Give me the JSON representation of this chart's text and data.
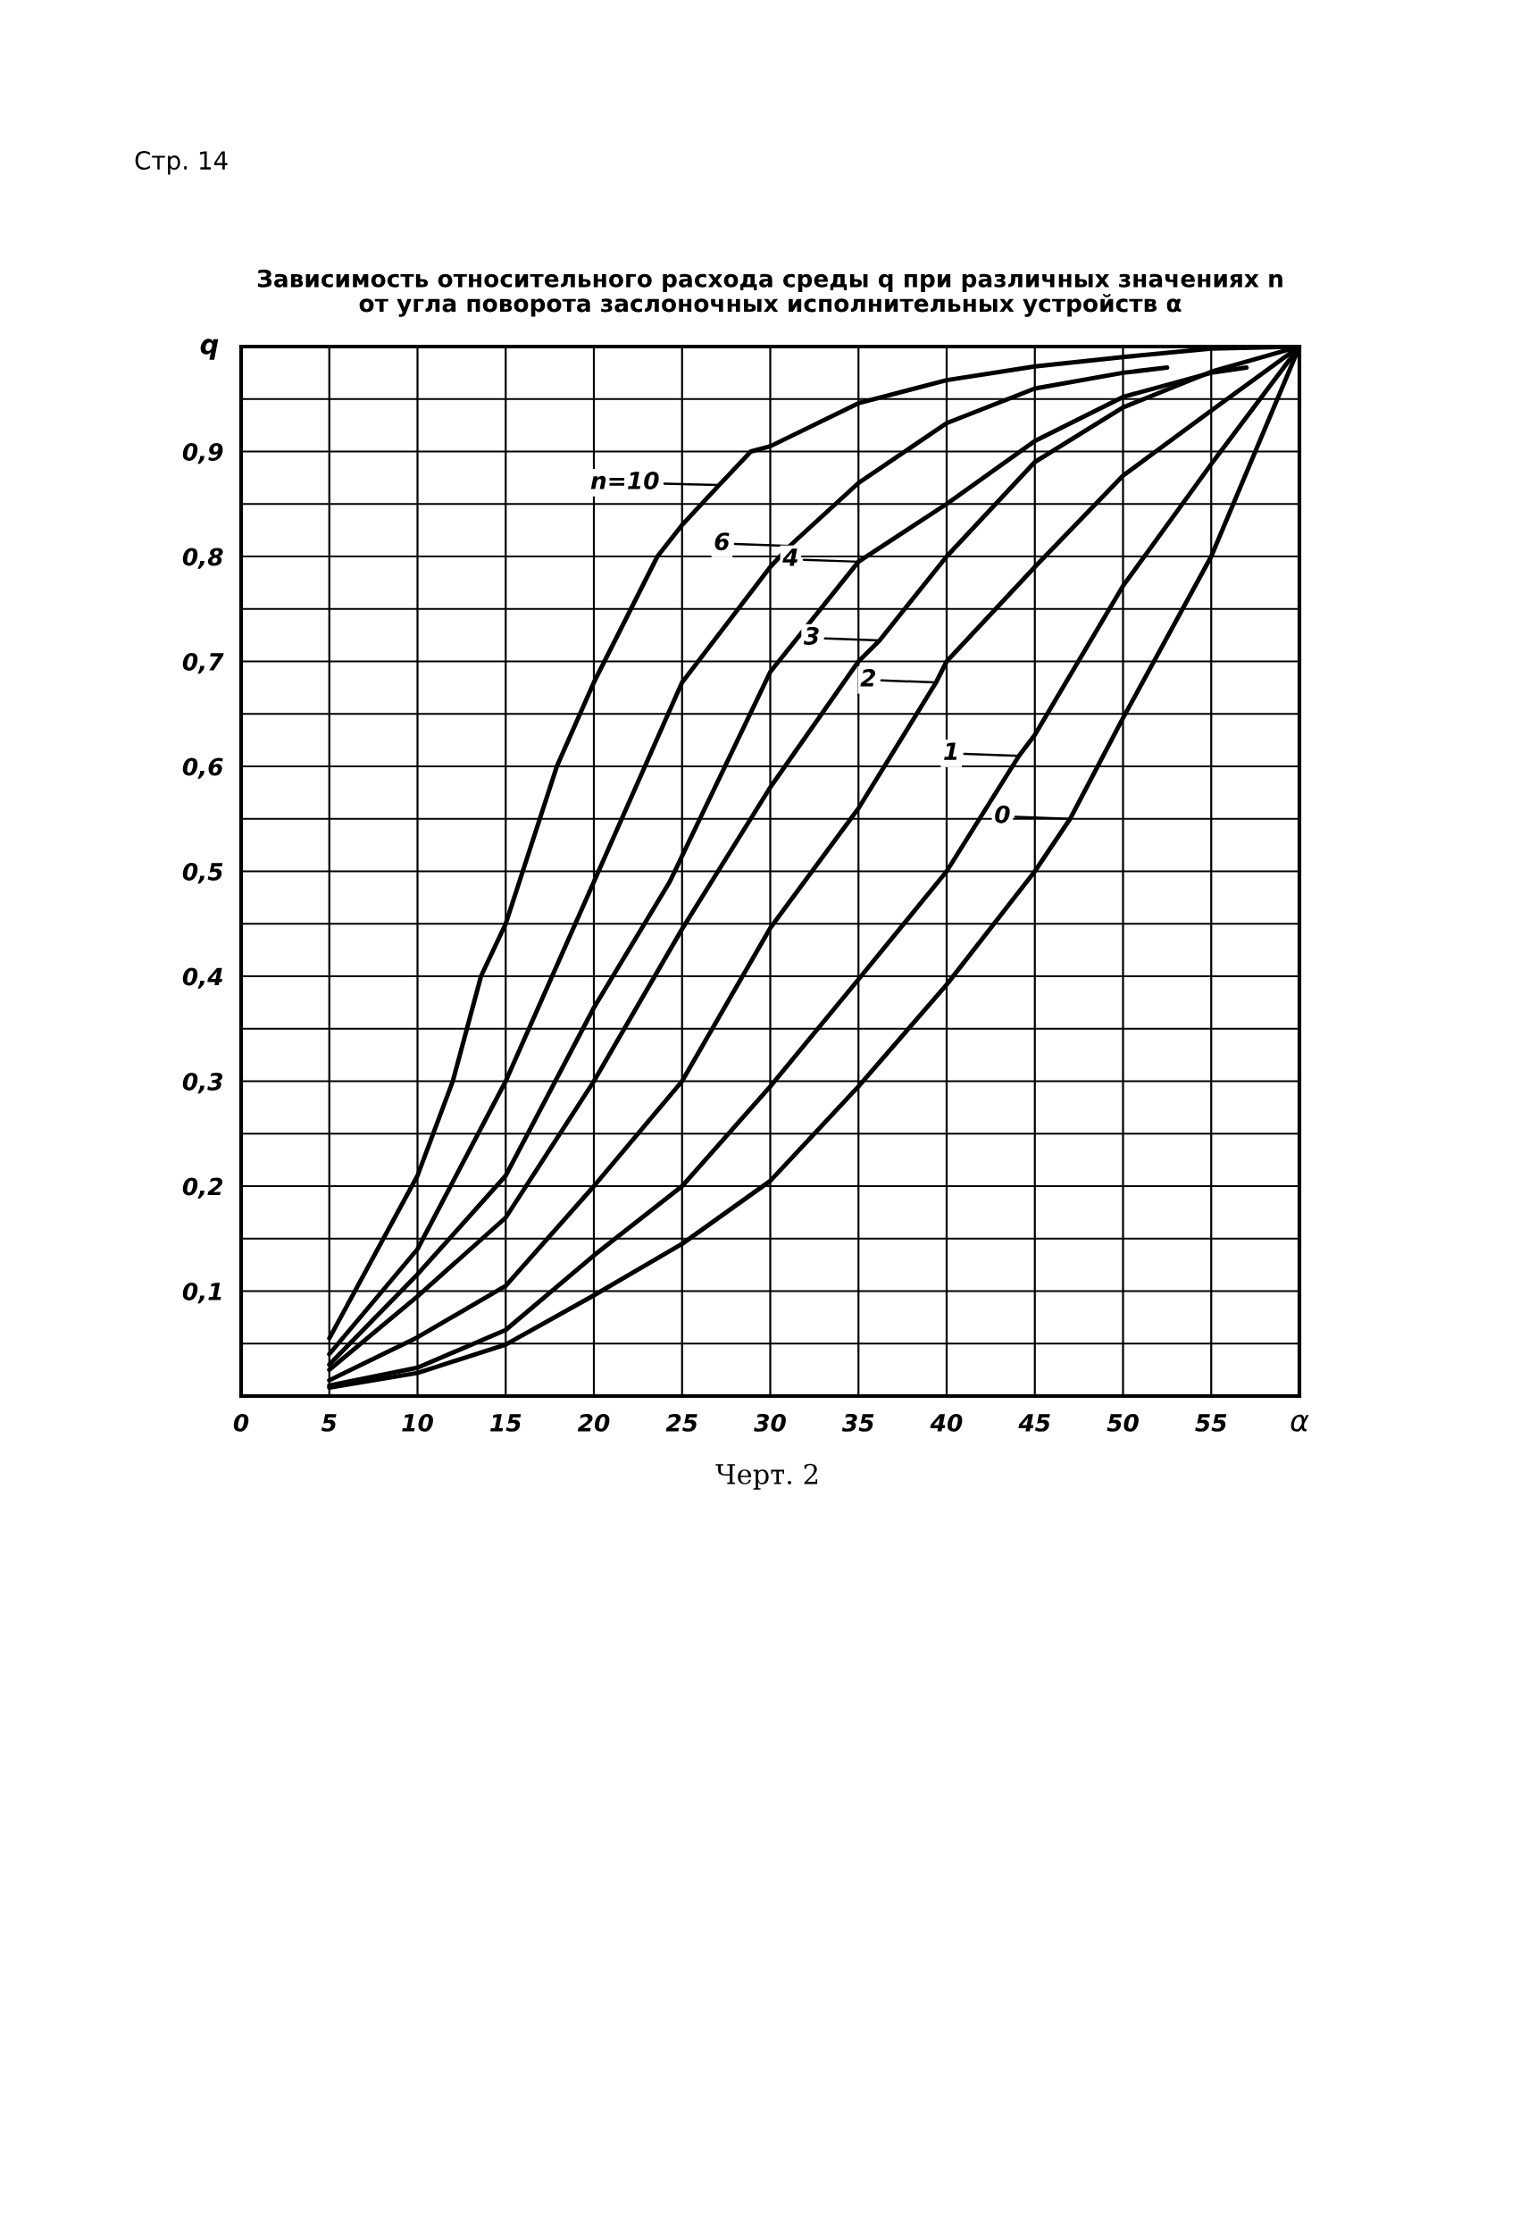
{
  "chart_data": {
    "type": "line",
    "title": "Зависимость относительного расхода среды q при различных значениях n\nот угла поворота заслоночных исполнительных устройств α",
    "xlabel": "α",
    "ylabel": "q",
    "xlim": [
      0,
      60
    ],
    "ylim": [
      0,
      1
    ],
    "xticks": [
      0,
      5,
      10,
      15,
      20,
      25,
      30,
      35,
      40,
      45,
      50,
      55,
      {
        "value": 60,
        "label": null
      }
    ],
    "yticks": [
      {
        "value": 0.05,
        "label": null
      },
      {
        "value": 0.1,
        "label": "0,1"
      },
      {
        "value": 0.15,
        "label": null
      },
      {
        "value": 0.2,
        "label": "0,2"
      },
      {
        "value": 0.25,
        "label": null
      },
      {
        "value": 0.3,
        "label": "0,3"
      },
      {
        "value": 0.35,
        "label": null
      },
      {
        "value": 0.4,
        "label": "0,4"
      },
      {
        "value": 0.45,
        "label": null
      },
      {
        "value": 0.5,
        "label": "0,5"
      },
      {
        "value": 0.55,
        "label": null
      },
      {
        "value": 0.6,
        "label": "0,6"
      },
      {
        "value": 0.65,
        "label": null
      },
      {
        "value": 0.7,
        "label": "0,7"
      },
      {
        "value": 0.75,
        "label": null
      },
      {
        "value": 0.8,
        "label": "0,8"
      },
      {
        "value": 0.85,
        "label": null
      },
      {
        "value": 0.9,
        "label": "0,9"
      },
      {
        "value": 0.95,
        "label": null
      }
    ],
    "grid": true,
    "marker": "none",
    "line_style": "solid",
    "series": [
      {
        "color": "#000000",
        "x": [
          5,
          10,
          12,
          13.6,
          15,
          17.9,
          20,
          23.6,
          25,
          27.1,
          28.9,
          30,
          35,
          40,
          45,
          50,
          55,
          60
        ],
        "values": [
          0.055,
          0.21,
          0.3,
          0.4,
          0.45,
          0.6,
          0.68,
          0.8,
          0.83,
          0.868,
          0.9,
          0.905,
          0.946,
          0.968,
          0.981,
          0.99,
          0.998,
          1.0
        ]
      },
      {
        "color": "#000000",
        "x": [
          5,
          10,
          15,
          20,
          25,
          30,
          31.1,
          35,
          40,
          45,
          50,
          52.5
        ],
        "values": [
          0.04,
          0.14,
          0.3,
          0.49,
          0.68,
          0.79,
          0.81,
          0.87,
          0.927,
          0.96,
          0.975,
          0.98
        ]
      },
      {
        "color": "#000000",
        "x": [
          5,
          10,
          15,
          20,
          24.3,
          30,
          35,
          40,
          45,
          50,
          55,
          57
        ],
        "values": [
          0.03,
          0.116,
          0.21,
          0.37,
          0.49,
          0.69,
          0.795,
          0.85,
          0.91,
          0.952,
          0.975,
          0.98
        ]
      },
      {
        "color": "#000000",
        "x": [
          5,
          10,
          15,
          20,
          25,
          30,
          35,
          36.2,
          40,
          45,
          50,
          55,
          60
        ],
        "values": [
          0.025,
          0.095,
          0.17,
          0.3,
          0.445,
          0.58,
          0.7,
          0.72,
          0.8,
          0.89,
          0.942,
          0.976,
          1.0
        ]
      },
      {
        "color": "#000000",
        "x": [
          5,
          10,
          15,
          20,
          25,
          30,
          35,
          39.4,
          40,
          45,
          50,
          55,
          60
        ],
        "values": [
          0.015,
          0.056,
          0.105,
          0.2,
          0.3,
          0.446,
          0.56,
          0.68,
          0.7,
          0.79,
          0.877,
          0.939,
          1.0
        ]
      },
      {
        "color": "#000000",
        "x": [
          5,
          10,
          15,
          20,
          25,
          30,
          35,
          40,
          44.1,
          45,
          50,
          55,
          60
        ],
        "values": [
          0.01,
          0.027,
          0.063,
          0.134,
          0.2,
          0.295,
          0.397,
          0.5,
          0.61,
          0.63,
          0.772,
          0.888,
          1.0
        ]
      },
      {
        "color": "#000000",
        "x": [
          5,
          10,
          15,
          20,
          25,
          30,
          35,
          40,
          45,
          47,
          50,
          55,
          60
        ],
        "values": [
          0.008,
          0.022,
          0.049,
          0.096,
          0.145,
          0.205,
          0.295,
          0.392,
          0.5,
          0.55,
          0.646,
          0.8,
          1.0
        ]
      }
    ],
    "annotations": [
      "Стр. 14",
      "Черт. 2",
      {
        "text": "n=10",
        "x": 27.1,
        "y": 0.868
      },
      {
        "text": "6",
        "x": 31.1,
        "y": 0.81
      },
      {
        "text": "4",
        "x": 35,
        "y": 0.795
      },
      {
        "text": "3",
        "x": 36.2,
        "y": 0.72
      },
      {
        "text": "2",
        "x": 39.4,
        "y": 0.68
      },
      {
        "text": "1",
        "x": 44.1,
        "y": 0.61
      },
      {
        "text": "0",
        "x": 47,
        "y": 0.55
      }
    ]
  }
}
